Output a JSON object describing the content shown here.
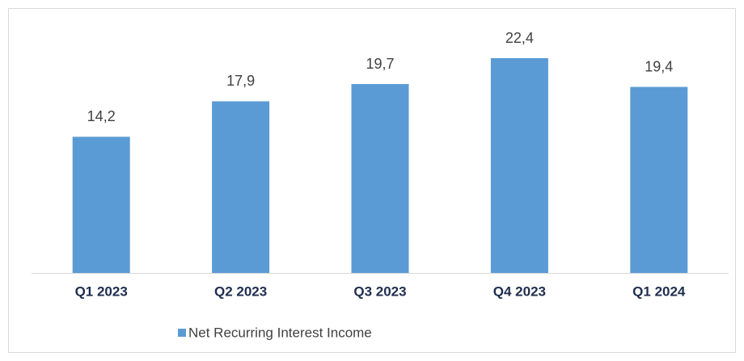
{
  "chart_data": {
    "type": "bar",
    "categories": [
      "Q1 2023",
      "Q2 2023",
      "Q3 2023",
      "Q4 2023",
      "Q1 2024"
    ],
    "series": [
      {
        "name": "Net Recurring Interest Income",
        "color": "#5b9bd5",
        "values": [
          14.2,
          17.9,
          19.7,
          22.4,
          19.4
        ],
        "value_labels": [
          "14,2",
          "17,9",
          "19,7",
          "22,4",
          "19,4"
        ]
      }
    ]
  }
}
